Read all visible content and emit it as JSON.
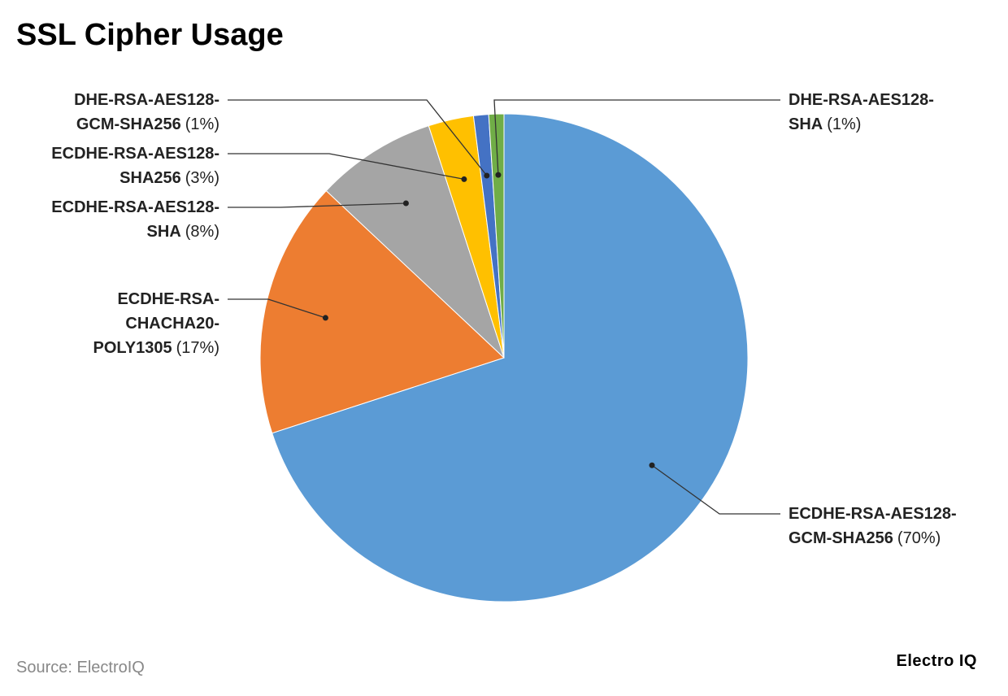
{
  "chart_data": {
    "type": "pie",
    "title": "SSL Cipher Usage",
    "categories": [
      "ECDHE-RSA-AES128-GCM-SHA256",
      "ECDHE-RSA-CHACHA20-POLY1305",
      "ECDHE-RSA-AES128-SHA",
      "ECDHE-RSA-AES128-SHA256",
      "DHE-RSA-AES128-GCM-SHA256",
      "DHE-RSA-AES128-SHA"
    ],
    "values": [
      70,
      17,
      8,
      3,
      1,
      1
    ],
    "value_labels": [
      "(70%)",
      "(17%)",
      "(8%)",
      "(3%)",
      "(1%)",
      "(1%)"
    ],
    "colors": [
      "#5b9bd5",
      "#ed7d31",
      "#a5a5a5",
      "#ffc000",
      "#4472c4",
      "#70ad47"
    ],
    "source": "Source: ElectroIQ",
    "brand": "Electro IQ"
  }
}
